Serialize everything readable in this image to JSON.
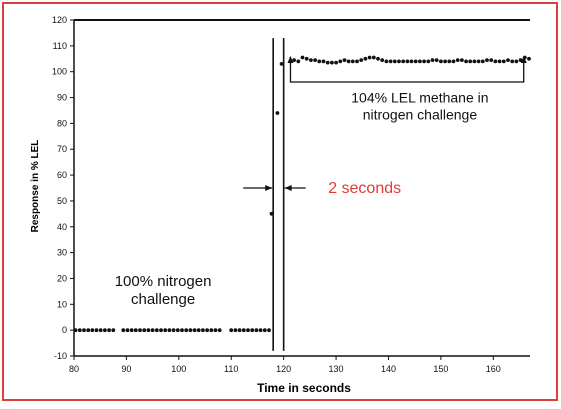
{
  "colors": {
    "border": "#d9423b",
    "ink": "#111111",
    "highlight": "#e03c36"
  },
  "chart_data": {
    "type": "scatter",
    "title": "",
    "xlabel": "Time in seconds",
    "ylabel": "Response in % LEL",
    "xlim": [
      80,
      167
    ],
    "ylim": [
      -10,
      120
    ],
    "x_ticks": [
      80,
      90,
      100,
      110,
      120,
      130,
      140,
      150,
      160
    ],
    "y_ticks": [
      -10,
      0,
      10,
      20,
      30,
      40,
      50,
      60,
      70,
      80,
      90,
      100,
      110,
      120
    ],
    "grid": false,
    "legend": "none",
    "series": [
      {
        "x": [
          80.3,
          81.1,
          81.9,
          82.7,
          83.5,
          84.3,
          85.1,
          85.9,
          86.7,
          87.5,
          89.4,
          90.2,
          91.0,
          91.8,
          92.6,
          93.4,
          94.2,
          95.0,
          95.8,
          96.6,
          97.4,
          98.2,
          99.0,
          99.8,
          100.6,
          101.4,
          102.2,
          103.0,
          103.8,
          104.6,
          105.4,
          106.2,
          107.0,
          107.8,
          110.0,
          110.8,
          111.6,
          112.4,
          113.2,
          114.0,
          114.8,
          115.6,
          116.4,
          117.2,
          117.7,
          118.8,
          119.6,
          121.3,
          122.0,
          122.8,
          123.6,
          124.4,
          125.2,
          126.0,
          126.8,
          127.6,
          128.4,
          129.2,
          130.0,
          130.8,
          131.6,
          132.4,
          133.2,
          134.0,
          134.8,
          135.6,
          136.4,
          137.2,
          138.0,
          138.8,
          139.6,
          140.4,
          141.2,
          142.0,
          142.8,
          143.6,
          144.4,
          145.2,
          146.0,
          146.8,
          147.6,
          148.4,
          149.2,
          150.0,
          150.8,
          151.6,
          152.4,
          153.2,
          154.0,
          154.8,
          155.6,
          156.4,
          157.2,
          158.0,
          158.8,
          159.6,
          160.4,
          161.2,
          162.0,
          162.8,
          163.6,
          164.4,
          165.2,
          166.0,
          166.8
        ],
        "y": [
          0,
          0,
          0,
          0,
          0,
          0,
          0,
          0,
          0,
          0,
          0,
          0,
          0,
          0,
          0,
          0,
          0,
          0,
          0,
          0,
          0,
          0,
          0,
          0,
          0,
          0,
          0,
          0,
          0,
          0,
          0,
          0,
          0,
          0,
          0,
          0,
          0,
          0,
          0,
          0,
          0,
          0,
          0,
          0,
          45,
          84,
          103,
          104,
          104.5,
          104,
          105.5,
          105,
          104.5,
          104.5,
          104,
          104,
          103.5,
          103.5,
          103.5,
          104,
          104.5,
          104,
          104,
          104,
          104.5,
          105,
          105.5,
          105.5,
          105,
          104.5,
          104,
          104,
          104,
          104,
          104,
          104,
          104,
          104,
          104,
          104,
          104,
          104.5,
          104.5,
          104,
          104,
          104,
          104,
          104.5,
          104.5,
          104,
          104,
          104,
          104,
          104,
          104.5,
          104.5,
          104,
          104,
          104,
          104.5,
          104,
          104,
          104.5,
          105.5,
          105
        ]
      }
    ],
    "annotations": [
      {
        "text_lines": [
          "100% nitrogen",
          "challenge"
        ],
        "x": 97,
        "y": 17
      },
      {
        "text_lines": [
          "104% LEL methane in",
          "nitrogen challenge"
        ],
        "x": 146,
        "y": 88
      },
      {
        "text": "2 seconds",
        "x": 128.5,
        "y": 53
      }
    ],
    "interval": {
      "from": 118,
      "to": 120,
      "y": 55
    },
    "bracket": {
      "from": 121.3,
      "to": 165.8,
      "y": 96
    }
  }
}
